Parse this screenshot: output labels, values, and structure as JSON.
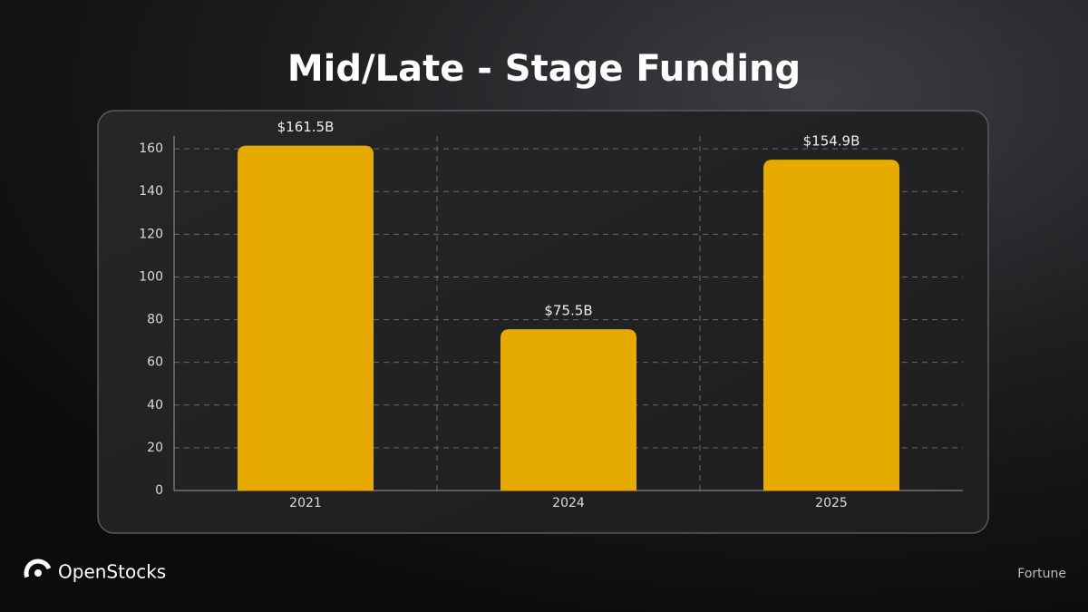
{
  "chart_data": {
    "type": "bar",
    "title": "Mid/Late - Stage Funding",
    "categories": [
      "2021",
      "2024",
      "2025"
    ],
    "values": [
      161.5,
      75.5,
      154.9
    ],
    "value_labels": [
      "$161.5B",
      "$75.5B",
      "$154.9B"
    ],
    "color": "#e6ab00",
    "ylim": [
      0,
      166
    ],
    "yticks": [
      0,
      20,
      40,
      60,
      80,
      100,
      120,
      140,
      160
    ],
    "grid": true,
    "brand": "OpenStocks",
    "source": "Fortune"
  }
}
